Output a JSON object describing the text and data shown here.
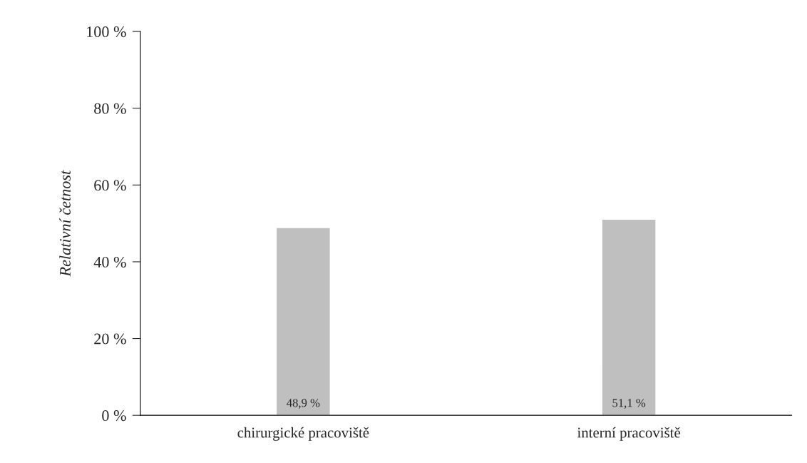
{
  "chart_data": {
    "type": "bar",
    "ylabel": "Relativní četnost",
    "categories": [
      "chirurgické pracoviště",
      "interní pracoviště"
    ],
    "values": [
      48.9,
      51.1
    ],
    "color": "#bfbfbf",
    "value_labels": [
      "48,9 %",
      "51,1 %"
    ],
    "ylim": [
      0,
      100
    ],
    "yticks": [
      {
        "value": 0,
        "label": "0 %"
      },
      {
        "value": 20,
        "label": "20 %"
      },
      {
        "value": 40,
        "label": "40 %"
      },
      {
        "value": 60,
        "label": "60 %"
      },
      {
        "value": 80,
        "label": "80 %"
      },
      {
        "value": 100,
        "label": "100 %"
      }
    ],
    "grid": false,
    "legend": false
  }
}
